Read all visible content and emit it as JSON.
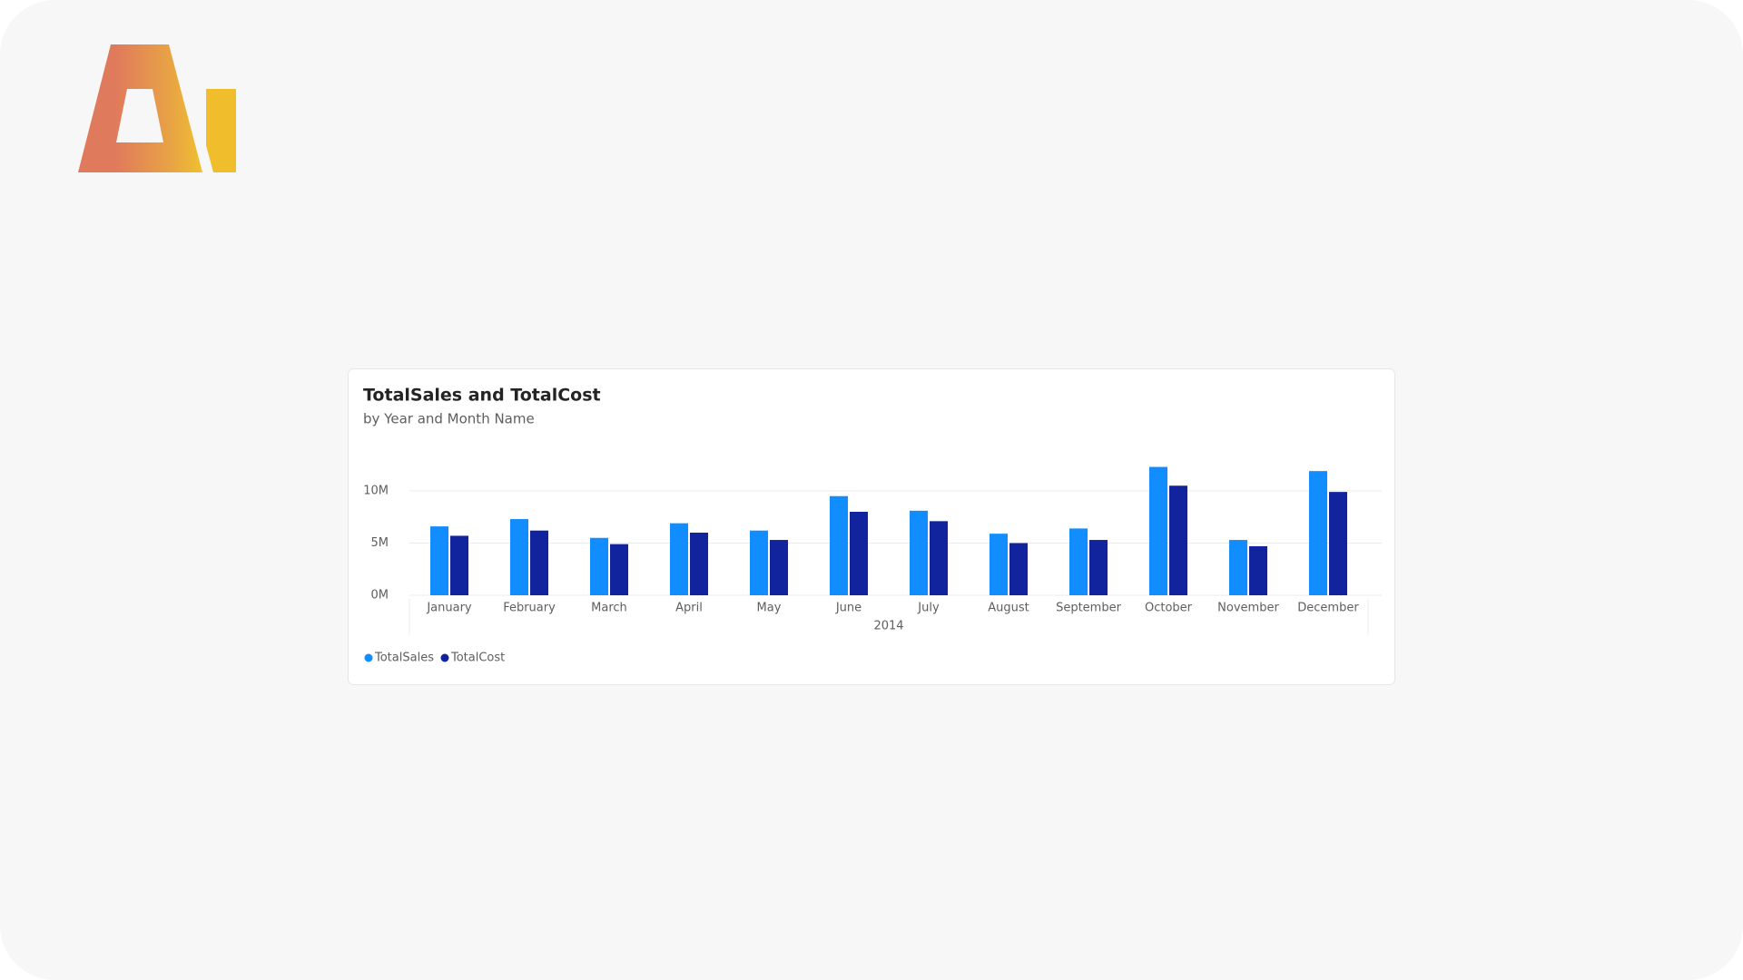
{
  "chart_data": {
    "type": "bar",
    "title": "TotalSales and TotalCost",
    "subtitle": "by Year and Month Name",
    "categories": [
      "January",
      "February",
      "March",
      "April",
      "May",
      "June",
      "July",
      "August",
      "September",
      "October",
      "November",
      "December"
    ],
    "x_group_label": "2014",
    "series": [
      {
        "name": "TotalSales",
        "color": "#118dff",
        "values": [
          6.6,
          7.3,
          5.5,
          6.9,
          6.2,
          9.5,
          8.1,
          5.9,
          6.4,
          12.3,
          5.3,
          11.9
        ]
      },
      {
        "name": "TotalCost",
        "color": "#12239e",
        "values": [
          5.7,
          6.2,
          4.9,
          6.0,
          5.3,
          8.0,
          7.1,
          5.0,
          5.3,
          10.5,
          4.7,
          9.9
        ]
      }
    ],
    "ylim": [
      0,
      13.5
    ],
    "yticks": [
      {
        "value": 0,
        "label": "0M"
      },
      {
        "value": 5,
        "label": "5M"
      },
      {
        "value": 10,
        "label": "10M"
      }
    ],
    "grid": true,
    "legend": "bottom-left"
  }
}
